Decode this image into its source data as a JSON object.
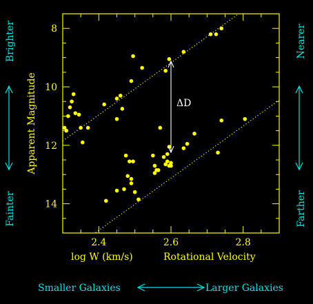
{
  "chart_data": {
    "type": "scatter",
    "xlabel": "log W (km/s)",
    "xlabel_extra": "Rotational Velocity",
    "ylabel": "Apparent Magnitude",
    "xlim": [
      2.3,
      2.9
    ],
    "ylim": [
      15.0,
      7.5
    ],
    "y_inverted": true,
    "x_ticks": [
      2.4,
      2.6,
      2.8
    ],
    "x_tick_labels": [
      "2.4",
      "2.6",
      "2.8"
    ],
    "y_ticks": [
      8,
      10,
      12,
      14
    ],
    "y_tick_labels": [
      "8",
      "10",
      "12",
      "14"
    ],
    "series": [
      {
        "x": [
          2.305,
          2.31,
          2.315,
          2.32,
          2.325,
          2.33,
          2.335,
          2.345,
          2.35,
          2.355,
          2.37,
          2.415,
          2.45,
          2.45,
          2.46,
          2.465,
          2.49,
          2.495,
          2.52,
          2.585,
          2.595,
          2.635,
          2.71,
          2.725,
          2.74
        ],
        "y": [
          11.4,
          11.5,
          11.0,
          10.7,
          10.5,
          10.25,
          10.9,
          10.95,
          11.4,
          11.9,
          11.4,
          10.6,
          10.4,
          11.1,
          10.3,
          10.75,
          9.8,
          8.95,
          9.35,
          9.45,
          9.05,
          8.8,
          8.2,
          8.2,
          8.0
        ]
      },
      {
        "x": [
          2.42,
          2.45,
          2.47,
          2.475,
          2.48,
          2.485,
          2.49,
          2.49,
          2.495,
          2.5,
          2.51,
          2.55,
          2.555,
          2.555,
          2.56,
          2.565,
          2.57,
          2.58,
          2.585,
          2.59,
          2.59,
          2.595,
          2.595,
          2.6,
          2.6,
          2.635,
          2.645,
          2.665,
          2.73,
          2.74,
          2.805
        ],
        "y": [
          13.9,
          13.55,
          13.5,
          12.35,
          13.05,
          12.55,
          13.15,
          13.3,
          12.55,
          13.6,
          13.85,
          12.35,
          12.7,
          12.95,
          12.85,
          12.85,
          11.4,
          12.4,
          12.65,
          12.3,
          12.55,
          12.7,
          12.05,
          12.6,
          12.7,
          12.1,
          11.95,
          11.6,
          12.25,
          11.15,
          11.1
        ]
      }
    ],
    "fit_lines": [
      {
        "x": [
          2.3,
          2.9
        ],
        "y": [
          11.85,
          6.5
        ]
      },
      {
        "x": [
          2.3,
          2.9
        ],
        "y": [
          15.8,
          10.45
        ]
      }
    ],
    "annotation": {
      "text": "ΔD",
      "x": 2.6,
      "y_from": 9.05,
      "y_to": 12.1
    }
  },
  "left_top_label": "Brighter",
  "left_bottom_label": "Fainter",
  "right_top_label": "Nearer",
  "right_bottom_label": "Farther",
  "bottom_left_label": "Smaller Galaxies",
  "bottom_right_label": "Larger Galaxies",
  "colors": {
    "background": "#000000",
    "axes": "#ffff00",
    "points": "#ffff00",
    "annotation": "#ffffff",
    "side_labels": "#00e6e6"
  }
}
